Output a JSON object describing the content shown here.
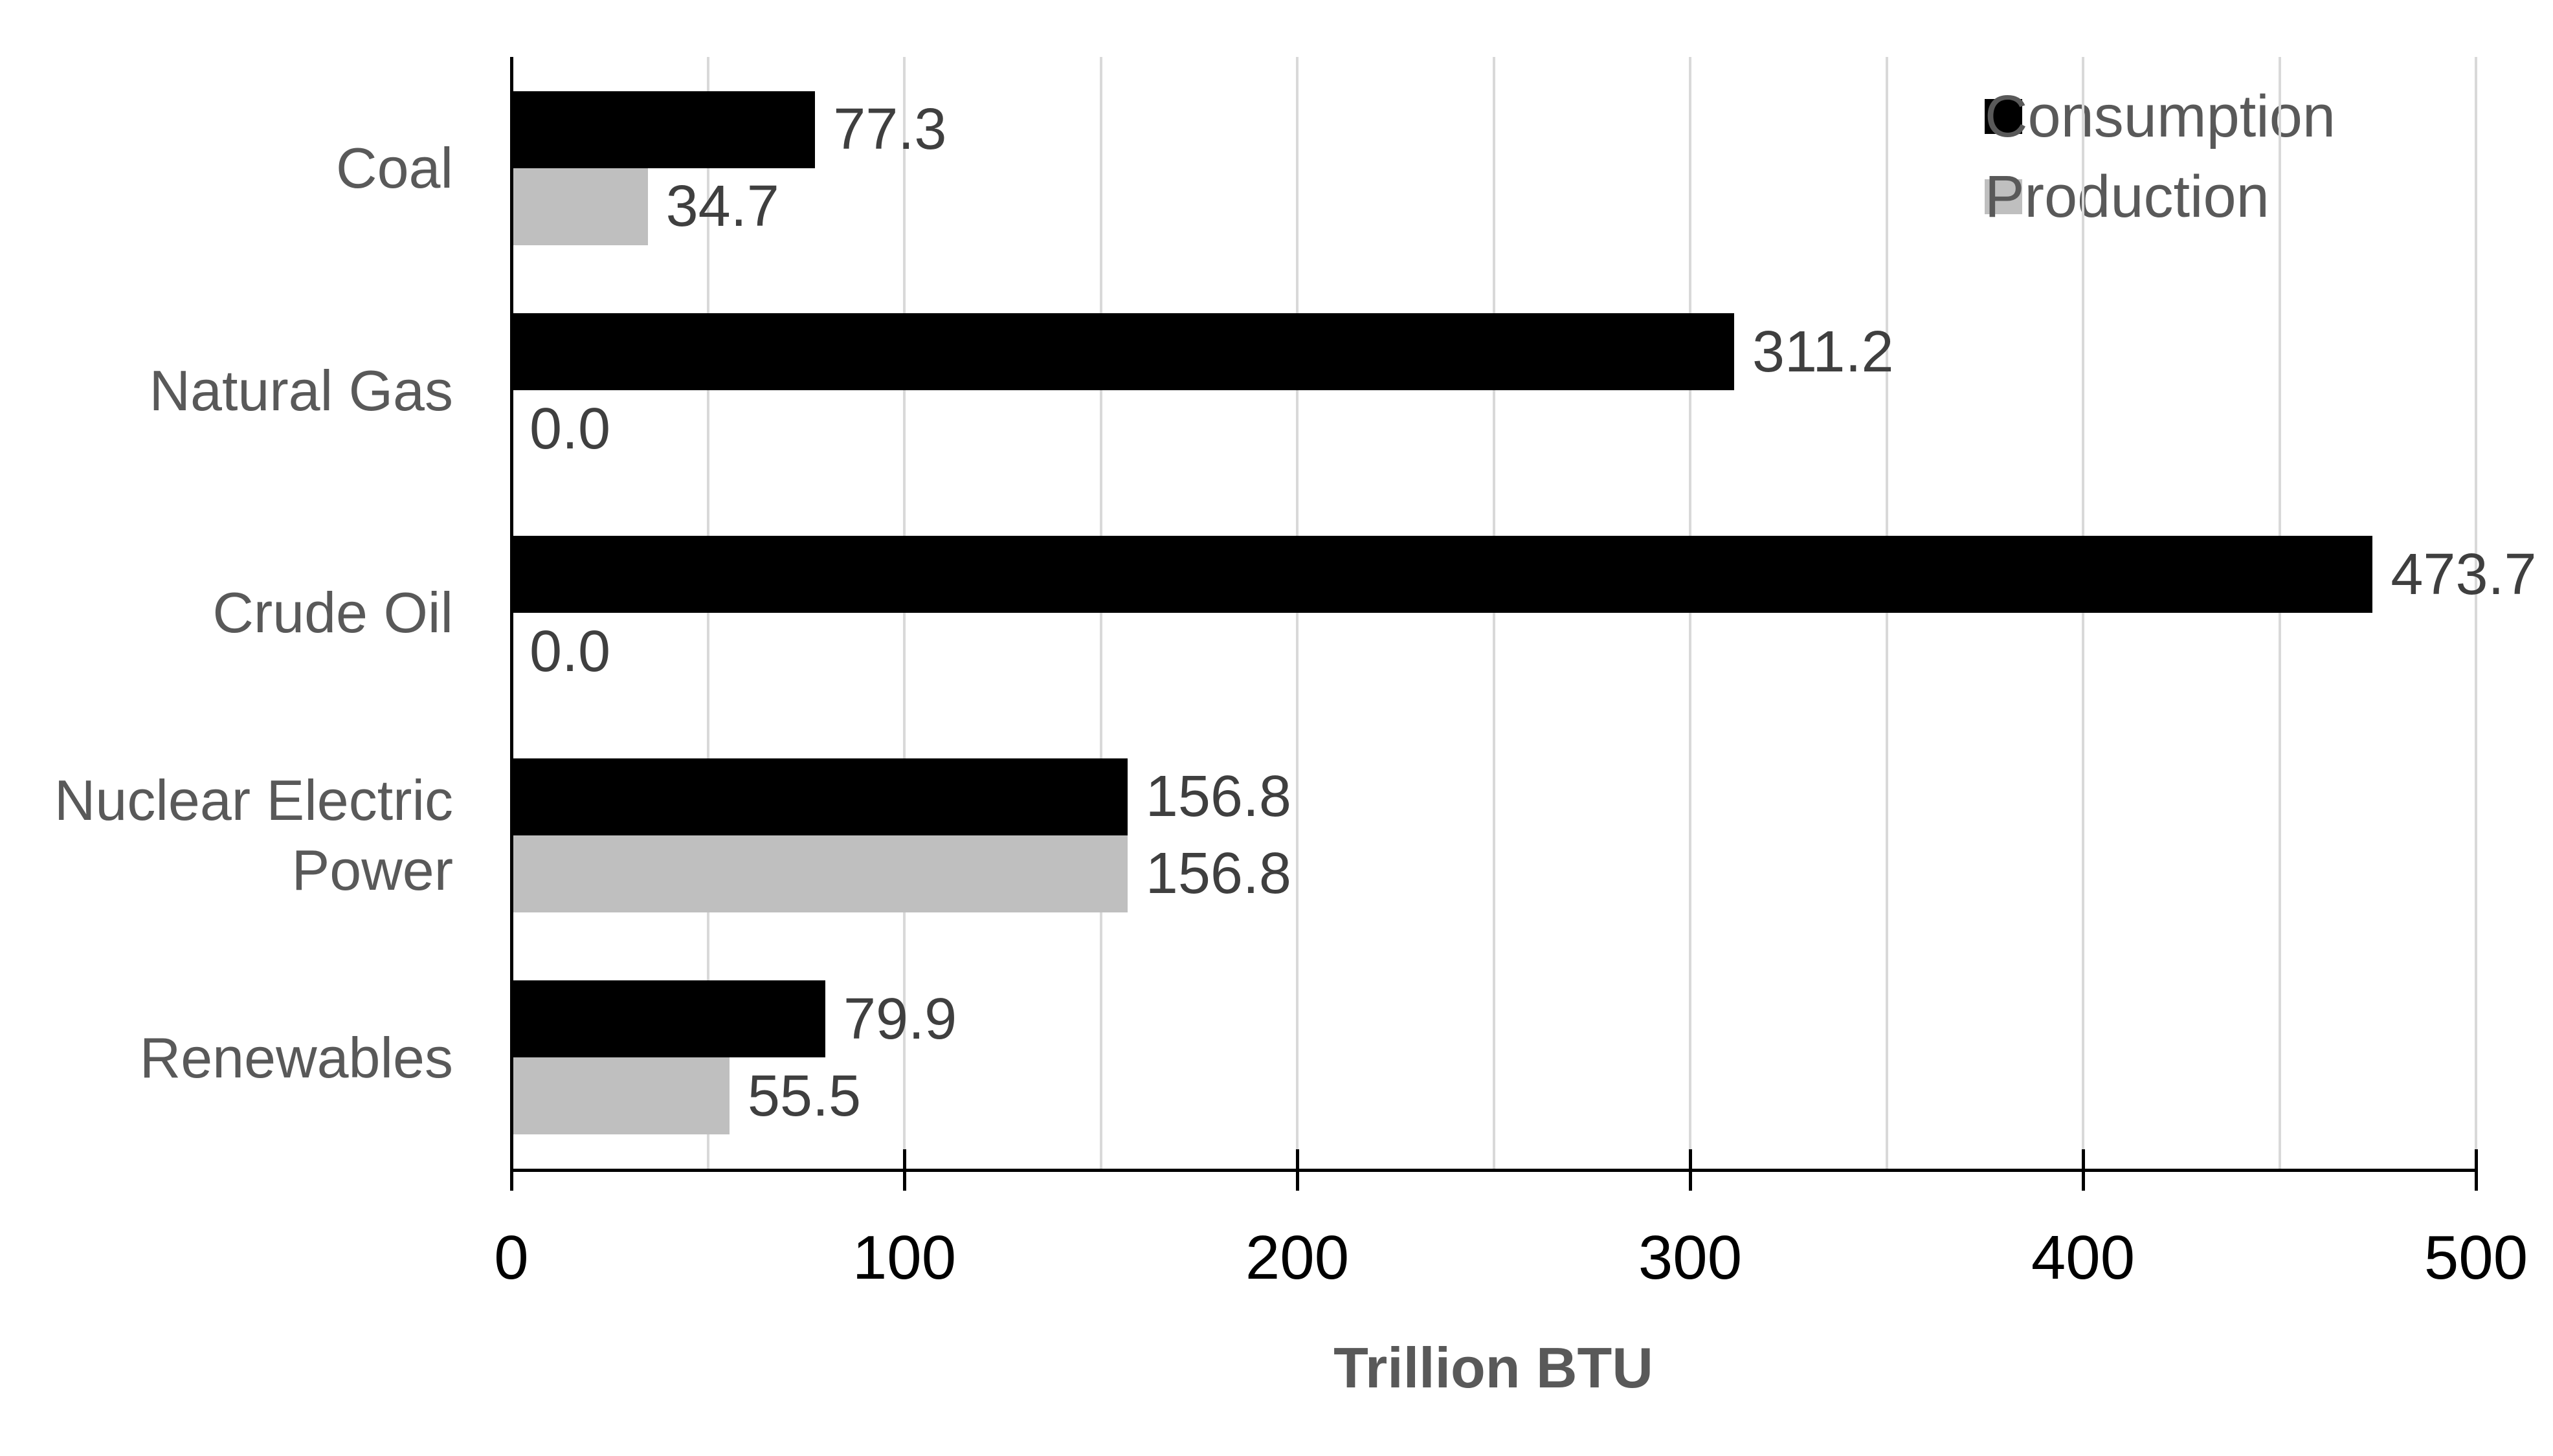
{
  "chart_data": {
    "type": "bar",
    "orientation": "horizontal",
    "title": "",
    "xlabel": "Trillion BTU",
    "ylabel": "",
    "categories": [
      "Coal",
      "Natural Gas",
      "Crude Oil",
      "Nuclear Electric Power",
      "Renewables"
    ],
    "series": [
      {
        "name": "Consumption",
        "color": "#000000",
        "values": [
          77.3,
          311.2,
          473.7,
          156.8,
          79.9
        ],
        "labels": [
          "77.3",
          "311.2",
          "473.7",
          "156.8",
          "79.9"
        ]
      },
      {
        "name": "Production",
        "color": "#bfbfbf",
        "values": [
          34.7,
          0.0,
          0.0,
          156.8,
          55.5
        ],
        "labels": [
          "34.7",
          "0.0",
          "0.0",
          "156.8",
          "55.5"
        ]
      }
    ],
    "xlim": [
      0,
      500
    ],
    "x_ticks": [
      0,
      100,
      200,
      300,
      400,
      500
    ],
    "gridline_interval": 50,
    "grid": true,
    "legend_position": "top-right",
    "data_labels": true
  },
  "legend": {
    "items": [
      {
        "label": "Consumption",
        "color": "#000000"
      },
      {
        "label": "Production",
        "color": "#bfbfbf"
      }
    ]
  },
  "colors": {
    "background": "#ffffff",
    "gridline": "#d9d9d9",
    "axis_line": "#000000",
    "tick_label": "#000000",
    "data_label": "#3f3f3f",
    "category_label": "#595959",
    "legend_text": "#595959",
    "axis_title_color": "#595959"
  }
}
